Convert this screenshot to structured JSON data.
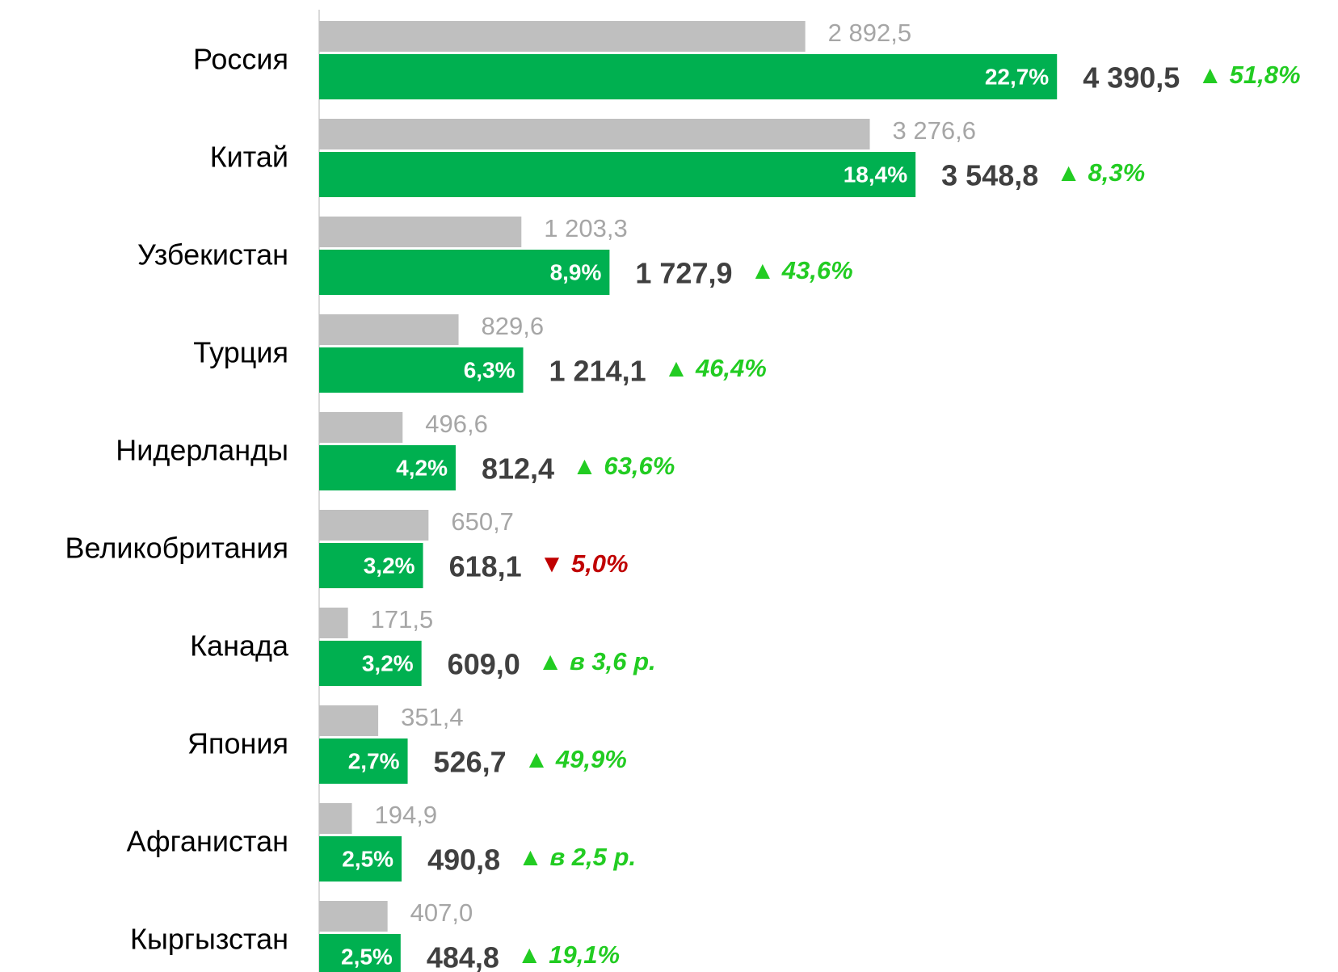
{
  "chart_data": {
    "type": "bar",
    "orientation": "horizontal",
    "categories": [
      "Россия",
      "Китай",
      "Узбекистан",
      "Турция",
      "Нидерланды",
      "Великобритания",
      "Канада",
      "Япония",
      "Афганистан",
      "Кыргызстан"
    ],
    "series": [
      {
        "color": "#bfbfbf",
        "values": [
          2892.5,
          3276.6,
          1203.3,
          829.6,
          496.6,
          650.7,
          171.5,
          351.4,
          194.9,
          407.0
        ],
        "value_labels": [
          "2 892,5",
          "3 276,6",
          "1 203,3",
          "829,6",
          "496,6",
          "650,7",
          "171,5",
          "351,4",
          "194,9",
          "407,0"
        ]
      },
      {
        "color": "#00b050",
        "values": [
          4390.5,
          3548.8,
          1727.9,
          1214.1,
          812.4,
          618.1,
          609.0,
          526.7,
          490.8,
          484.8
        ],
        "value_labels": [
          "4 390,5",
          "3 548,8",
          "1 727,9",
          "1 214,1",
          "812,4",
          "618,1",
          "609,0",
          "526,7",
          "490,8",
          "484,8"
        ]
      }
    ],
    "share_labels": [
      "22,7%",
      "18,4%",
      "8,9%",
      "6,3%",
      "4,2%",
      "3,2%",
      "3,2%",
      "2,7%",
      "2,5%",
      "2,5%"
    ],
    "changes": [
      {
        "label": "▲ 51,8%",
        "color": "#22cc22"
      },
      {
        "label": "▲ 8,3%",
        "color": "#22cc22"
      },
      {
        "label": "▲ 43,6%",
        "color": "#22cc22"
      },
      {
        "label": "▲ 46,4%",
        "color": "#22cc22"
      },
      {
        "label": "▲ 63,6%",
        "color": "#22cc22"
      },
      {
        "label": "▼ 5,0%",
        "color": "#c00000"
      },
      {
        "label": "▲ в 3,6 р.",
        "color": "#22cc22"
      },
      {
        "label": "▲ 49,9%",
        "color": "#22cc22"
      },
      {
        "label": "▲ в 2,5 р.",
        "color": "#22cc22"
      },
      {
        "label": "▲ 19,1%",
        "color": "#22cc22"
      }
    ],
    "xlim": [
      0,
      6000
    ]
  }
}
